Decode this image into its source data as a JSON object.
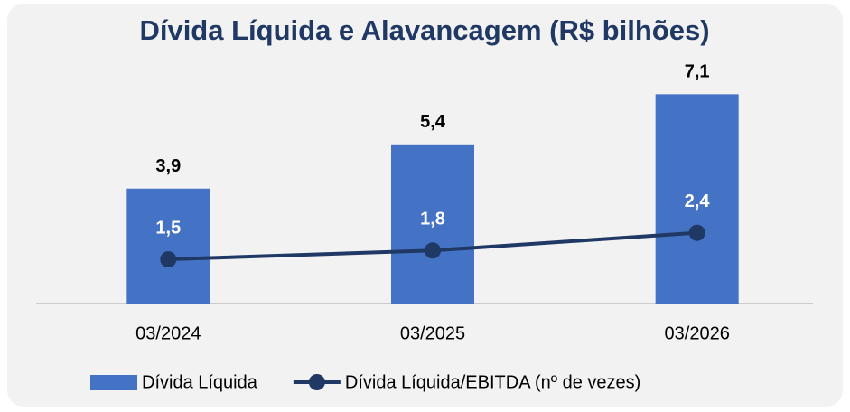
{
  "chart_data": {
    "type": "bar",
    "title": "Dívida Líquida e Alavancagem (R$ bilhões)",
    "categories": [
      "03/2024",
      "03/2025",
      "03/2026"
    ],
    "ylim": [
      0,
      8
    ],
    "series": [
      {
        "name": "Dívida Líquida",
        "type": "bar",
        "color": "#4472c4",
        "values": [
          3.9,
          5.4,
          7.1
        ],
        "value_labels": [
          "3,9",
          "5,4",
          "7,1"
        ]
      },
      {
        "name": "Dívida Líquida/EBITDA (nº de vezes)",
        "type": "line",
        "color": "#1f3864",
        "values": [
          1.5,
          1.8,
          2.4
        ],
        "value_labels": [
          "1,5",
          "1,8",
          "2,4"
        ]
      }
    ]
  }
}
